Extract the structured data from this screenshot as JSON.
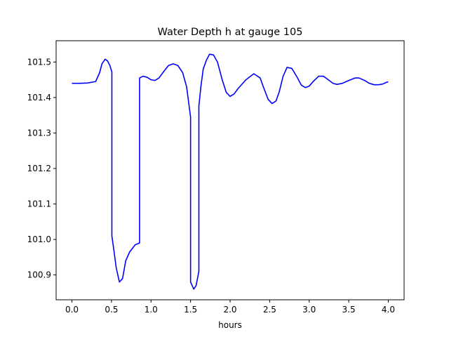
{
  "chart_data": {
    "type": "line",
    "title": "Water Depth h at gauge 105",
    "xlabel": "hours",
    "ylabel": "",
    "xlim": [
      -0.2,
      4.2
    ],
    "ylim": [
      100.83,
      101.56
    ],
    "xticks": [
      "0.0",
      "0.5",
      "1.0",
      "1.5",
      "2.0",
      "2.5",
      "3.0",
      "3.5",
      "4.0"
    ],
    "yticks": [
      "100.9",
      "101.0",
      "101.1",
      "101.2",
      "101.3",
      "101.4",
      "101.5"
    ],
    "grid": false,
    "colors": {
      "line": "#0000ff",
      "frame": "#000000"
    },
    "series": [
      {
        "color": "#0000ff",
        "points": [
          [
            0.0,
            101.44
          ],
          [
            0.1,
            101.44
          ],
          [
            0.2,
            101.441
          ],
          [
            0.3,
            101.445
          ],
          [
            0.35,
            101.47
          ],
          [
            0.38,
            101.495
          ],
          [
            0.42,
            101.508
          ],
          [
            0.45,
            101.503
          ],
          [
            0.48,
            101.49
          ],
          [
            0.505,
            101.472
          ],
          [
            0.505,
            101.01
          ],
          [
            0.53,
            100.97
          ],
          [
            0.56,
            100.92
          ],
          [
            0.6,
            100.88
          ],
          [
            0.64,
            100.89
          ],
          [
            0.68,
            100.94
          ],
          [
            0.73,
            100.965
          ],
          [
            0.8,
            100.985
          ],
          [
            0.855,
            100.99
          ],
          [
            0.855,
            101.455
          ],
          [
            0.9,
            101.46
          ],
          [
            0.95,
            101.457
          ],
          [
            1.0,
            101.45
          ],
          [
            1.05,
            101.448
          ],
          [
            1.1,
            101.455
          ],
          [
            1.15,
            101.47
          ],
          [
            1.22,
            101.49
          ],
          [
            1.28,
            101.495
          ],
          [
            1.34,
            101.49
          ],
          [
            1.4,
            101.47
          ],
          [
            1.45,
            101.43
          ],
          [
            1.5,
            101.345
          ],
          [
            1.5,
            100.88
          ],
          [
            1.54,
            100.86
          ],
          [
            1.57,
            100.87
          ],
          [
            1.605,
            100.91
          ],
          [
            1.605,
            101.375
          ],
          [
            1.63,
            101.43
          ],
          [
            1.66,
            101.48
          ],
          [
            1.7,
            101.505
          ],
          [
            1.74,
            101.522
          ],
          [
            1.79,
            101.52
          ],
          [
            1.84,
            101.5
          ],
          [
            1.9,
            101.45
          ],
          [
            1.95,
            101.415
          ],
          [
            2.0,
            101.403
          ],
          [
            2.05,
            101.41
          ],
          [
            2.1,
            101.425
          ],
          [
            2.2,
            101.45
          ],
          [
            2.3,
            101.467
          ],
          [
            2.38,
            101.455
          ],
          [
            2.42,
            101.43
          ],
          [
            2.48,
            101.395
          ],
          [
            2.53,
            101.383
          ],
          [
            2.58,
            101.39
          ],
          [
            2.62,
            101.415
          ],
          [
            2.67,
            101.46
          ],
          [
            2.72,
            101.485
          ],
          [
            2.78,
            101.482
          ],
          [
            2.84,
            101.46
          ],
          [
            2.9,
            101.435
          ],
          [
            2.95,
            101.428
          ],
          [
            3.0,
            101.432
          ],
          [
            3.05,
            101.445
          ],
          [
            3.12,
            101.46
          ],
          [
            3.18,
            101.46
          ],
          [
            3.23,
            101.452
          ],
          [
            3.3,
            101.44
          ],
          [
            3.35,
            101.437
          ],
          [
            3.42,
            101.44
          ],
          [
            3.5,
            101.448
          ],
          [
            3.58,
            101.455
          ],
          [
            3.63,
            101.455
          ],
          [
            3.7,
            101.448
          ],
          [
            3.76,
            101.44
          ],
          [
            3.82,
            101.436
          ],
          [
            3.88,
            101.436
          ],
          [
            3.93,
            101.438
          ],
          [
            3.98,
            101.443
          ],
          [
            4.0,
            101.444
          ]
        ]
      }
    ]
  }
}
